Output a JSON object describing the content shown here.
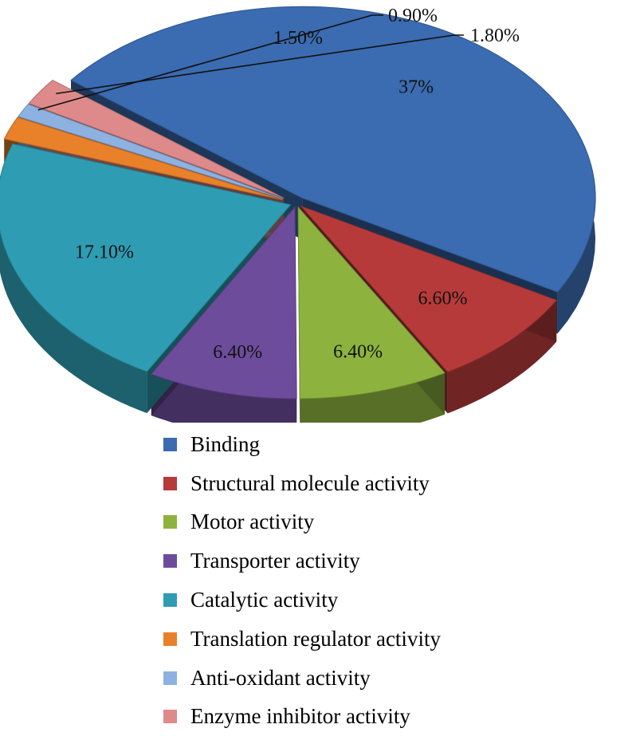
{
  "chart_data": {
    "type": "pie",
    "title": "",
    "slices": [
      {
        "label": "Binding",
        "value": 37,
        "display": "37%",
        "color": "#3B6BB0"
      },
      {
        "label": "Structural molecule activity",
        "value": 6.6,
        "display": "6.60%",
        "color": "#B73A3A"
      },
      {
        "label": "Motor activity",
        "value": 6.4,
        "display": "6.40%",
        "color": "#8DB33E"
      },
      {
        "label": "Transporter activity",
        "value": 6.4,
        "display": "6.40%",
        "color": "#6E4C9C"
      },
      {
        "label": "Catalytic activity",
        "value": 17.1,
        "display": "17.10%",
        "color": "#2E9DB3"
      },
      {
        "label": "Translation regulator activity",
        "value": 1.5,
        "display": "1.50%",
        "color": "#E8812A"
      },
      {
        "label": "Anti-oxidant activity",
        "value": 0.9,
        "display": "0.90%",
        "color": "#8DB2E2"
      },
      {
        "label": "Enzyme inhibitor activity",
        "value": 1.8,
        "display": "1.80%",
        "color": "#DE8A8A"
      }
    ],
    "legend_position": "bottom",
    "style": "3d exploded pie"
  }
}
